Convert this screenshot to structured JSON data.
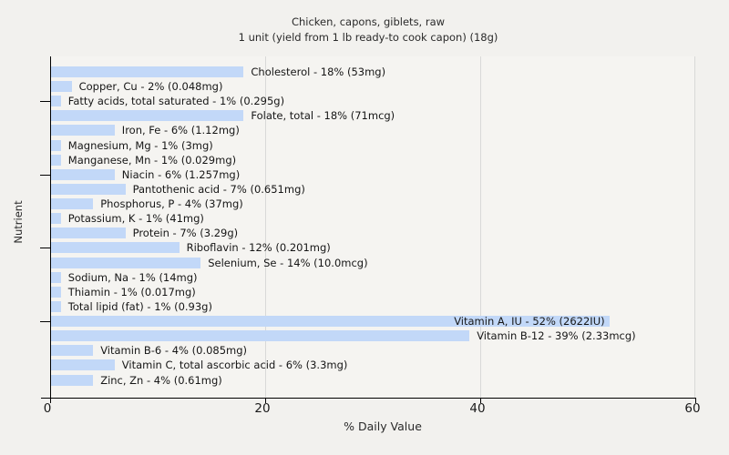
{
  "page": {
    "background": "#f2f1ee"
  },
  "chart_data": {
    "type": "bar",
    "orientation": "horizontal",
    "title": "Chicken, capons, giblets, raw",
    "subtitle": "1 unit (yield from 1 lb ready-to cook capon) (18g)",
    "xlabel": "% Daily Value",
    "ylabel": "Nutrient",
    "xlim": [
      0,
      60
    ],
    "xticks": [
      0,
      20,
      40,
      60
    ],
    "grid": "vertical gridlines at x ticks",
    "bar_color": "#c2d8f8",
    "axis_color": "#000000",
    "rows": [
      {
        "nutrient": "Cholesterol",
        "percent": 18,
        "amount": "53mg",
        "label": "Cholesterol - 18% (53mg)"
      },
      {
        "nutrient": "Copper, Cu",
        "percent": 2,
        "amount": "0.048mg",
        "label": "Copper, Cu - 2% (0.048mg)"
      },
      {
        "nutrient": "Fatty acids, total saturated",
        "percent": 1,
        "amount": "0.295g",
        "label": "Fatty acids, total saturated - 1% (0.295g)"
      },
      {
        "nutrient": "Folate, total",
        "percent": 18,
        "amount": "71mcg",
        "label": "Folate, total - 18% (71mcg)"
      },
      {
        "nutrient": "Iron, Fe",
        "percent": 6,
        "amount": "1.12mg",
        "label": "Iron, Fe - 6% (1.12mg)"
      },
      {
        "nutrient": "Magnesium, Mg",
        "percent": 1,
        "amount": "3mg",
        "label": "Magnesium, Mg - 1% (3mg)"
      },
      {
        "nutrient": "Manganese, Mn",
        "percent": 1,
        "amount": "0.029mg",
        "label": "Manganese, Mn - 1% (0.029mg)"
      },
      {
        "nutrient": "Niacin",
        "percent": 6,
        "amount": "1.257mg",
        "label": "Niacin - 6% (1.257mg)"
      },
      {
        "nutrient": "Pantothenic acid",
        "percent": 7,
        "amount": "0.651mg",
        "label": "Pantothenic acid - 7% (0.651mg)"
      },
      {
        "nutrient": "Phosphorus, P",
        "percent": 4,
        "amount": "37mg",
        "label": "Phosphorus, P - 4% (37mg)"
      },
      {
        "nutrient": "Potassium, K",
        "percent": 1,
        "amount": "41mg",
        "label": "Potassium, K - 1% (41mg)"
      },
      {
        "nutrient": "Protein",
        "percent": 7,
        "amount": "3.29g",
        "label": "Protein - 7% (3.29g)"
      },
      {
        "nutrient": "Riboflavin",
        "percent": 12,
        "amount": "0.201mg",
        "label": "Riboflavin - 12% (0.201mg)"
      },
      {
        "nutrient": "Selenium, Se",
        "percent": 14,
        "amount": "10.0mcg",
        "label": "Selenium, Se - 14% (10.0mcg)"
      },
      {
        "nutrient": "Sodium, Na",
        "percent": 1,
        "amount": "14mg",
        "label": "Sodium, Na - 1% (14mg)"
      },
      {
        "nutrient": "Thiamin",
        "percent": 1,
        "amount": "0.017mg",
        "label": "Thiamin - 1% (0.017mg)"
      },
      {
        "nutrient": "Total lipid (fat)",
        "percent": 1,
        "amount": "0.93g",
        "label": "Total lipid (fat) - 1% (0.93g)"
      },
      {
        "nutrient": "Vitamin A, IU",
        "percent": 52,
        "amount": "2622IU",
        "label": "Vitamin A, IU - 52% (2622IU)",
        "label_inside": true
      },
      {
        "nutrient": "Vitamin B-12",
        "percent": 39,
        "amount": "2.33mcg",
        "label": "Vitamin B-12 - 39% (2.33mcg)"
      },
      {
        "nutrient": "Vitamin B-6",
        "percent": 4,
        "amount": "0.085mg",
        "label": "Vitamin B-6 - 4% (0.085mg)"
      },
      {
        "nutrient": "Vitamin C, total ascorbic acid",
        "percent": 6,
        "amount": "3.3mg",
        "label": "Vitamin C, total ascorbic acid - 6% (3.3mg)"
      },
      {
        "nutrient": "Zinc, Zn",
        "percent": 4,
        "amount": "0.61mg",
        "label": "Zinc, Zn - 4% (0.61mg)"
      }
    ]
  }
}
